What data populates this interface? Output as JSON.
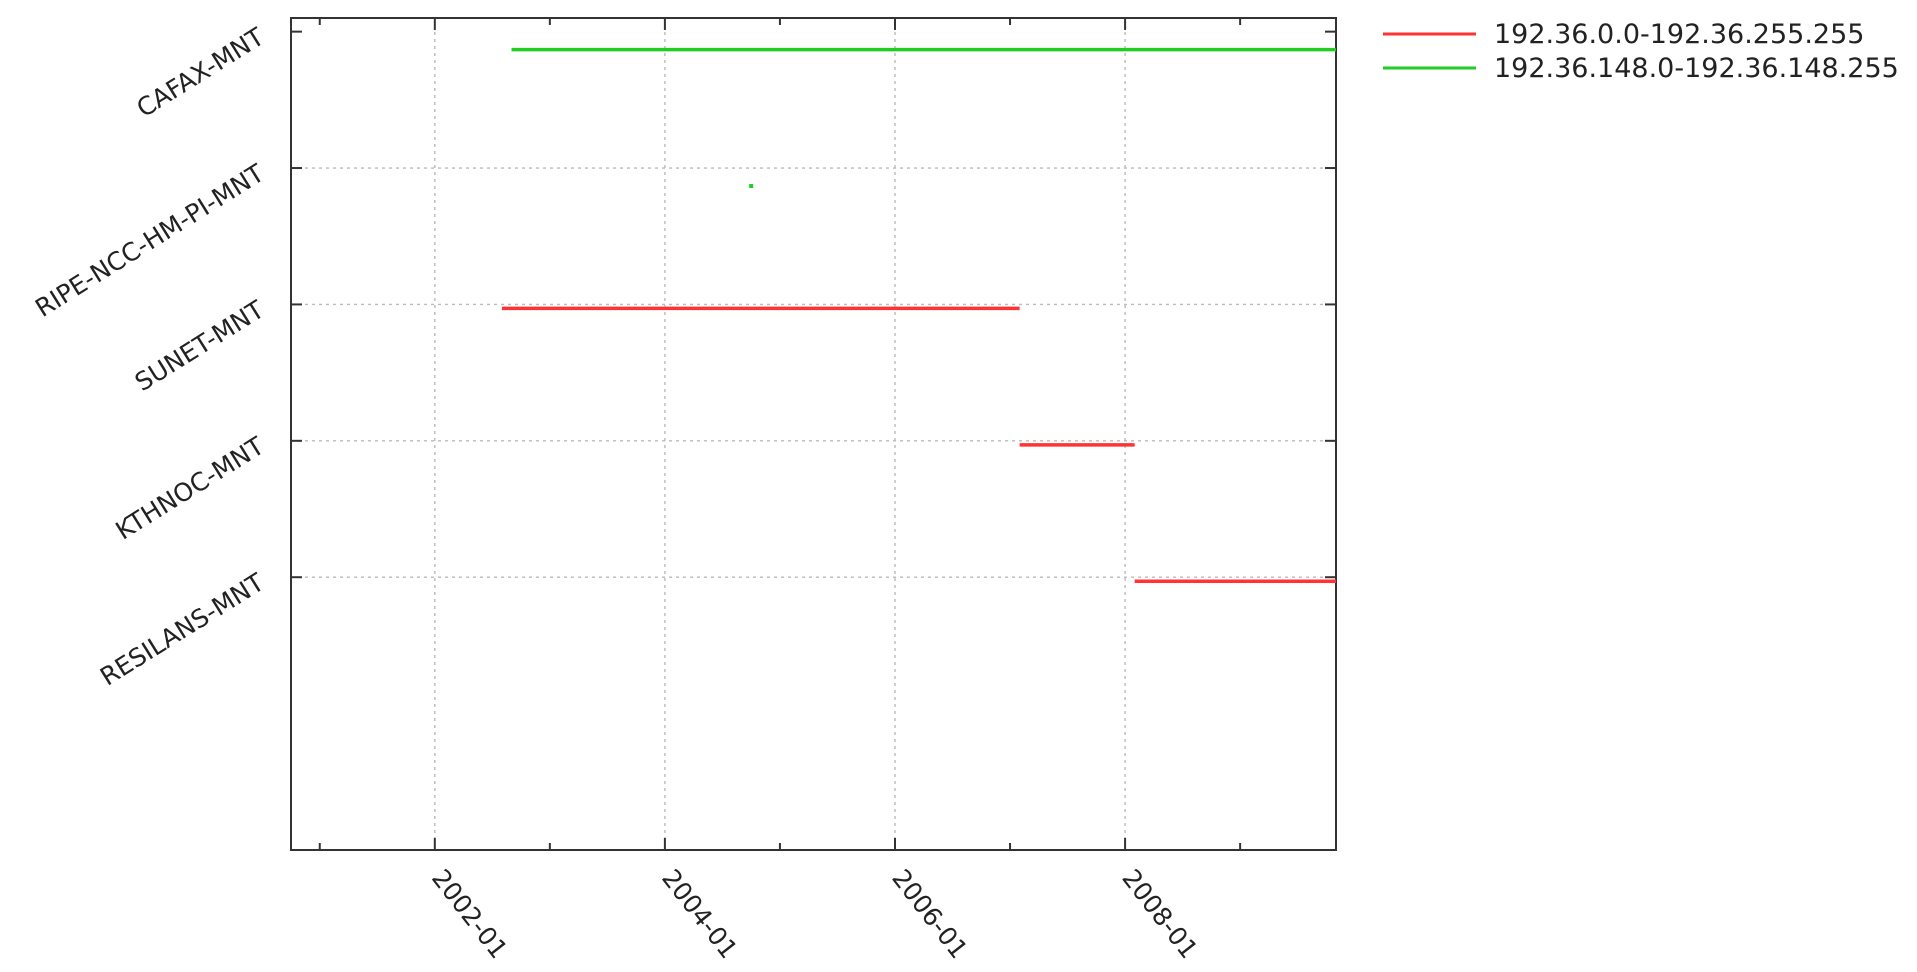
{
  "chart_data": {
    "type": "timeline",
    "x_axis": {
      "scale": "date",
      "range": [
        "2000-10-01",
        "2009-11-01"
      ],
      "major_ticks": [
        "2002-01",
        "2004-01",
        "2006-01",
        "2008-01"
      ],
      "minor_ticks": [
        "2001-01",
        "2003-01",
        "2005-01",
        "2007-01",
        "2009-01"
      ],
      "grid": true
    },
    "y_axis": {
      "categories": [
        "CAFAX-MNT",
        "RIPE-NCC-HM-PI-MNT",
        "SUNET-MNT",
        "KTHNOC-MNT",
        "RESILANS-MNT"
      ],
      "grid": true
    },
    "legend": {
      "position": "top-right-outside"
    },
    "series": [
      {
        "name": "192.36.0.0-192.36.255.255",
        "color": "#ff3333",
        "segments": [
          {
            "category": "SUNET-MNT",
            "start": "2002-08-01",
            "end": "2007-02-01"
          },
          {
            "category": "KTHNOC-MNT",
            "start": "2007-02-01",
            "end": "2008-02-01"
          },
          {
            "category": "RESILANS-MNT",
            "start": "2008-02-01",
            "end": "2009-11-01"
          }
        ]
      },
      {
        "name": "192.36.148.0-192.36.148.255",
        "color": "#22cc22",
        "segments": [
          {
            "category": "CAFAX-MNT",
            "start": "2002-09-01",
            "end": "2009-11-01"
          },
          {
            "category": "RIPE-NCC-HM-PI-MNT",
            "start": "2004-10-01",
            "end": "2004-10-01"
          }
        ]
      }
    ]
  }
}
